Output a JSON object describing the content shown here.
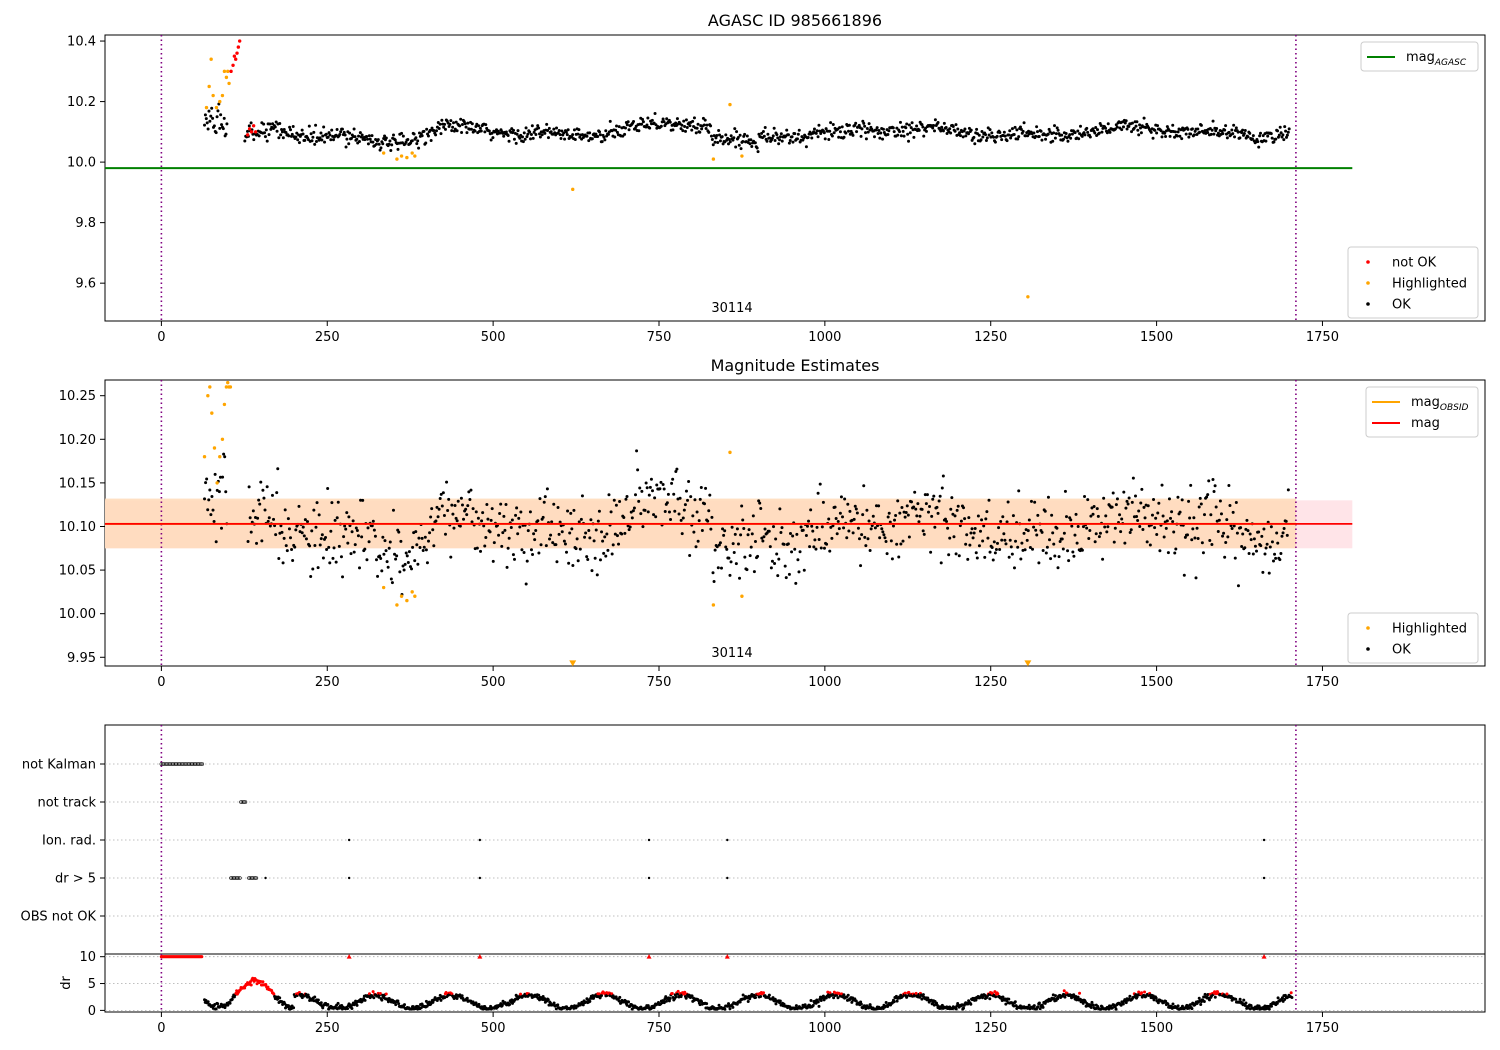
{
  "colors": {
    "ok": "#000000",
    "not_ok": "#ff0000",
    "highlighted": "#ffa500",
    "agasc_line": "#008000",
    "obsid_line": "#ffa500",
    "mag_line": "#ff0000",
    "obs_boundary": "#800080",
    "band_orange": "#ffdab9",
    "band_pink": "#ffe4e8"
  },
  "chart_data": [
    {
      "id": "top",
      "type": "scatter",
      "title": "AGASC ID 985661896",
      "annotation": "30114",
      "xlim": [
        -85,
        1995
      ],
      "ylim": [
        9.475,
        10.42
      ],
      "xticks": [
        0,
        250,
        500,
        750,
        1000,
        1250,
        1500,
        1750
      ],
      "xtick_labels": [
        "0",
        "250",
        "500",
        "750",
        "1000",
        "1250",
        "1500",
        "1750"
      ],
      "yticks": [
        9.6,
        9.8,
        10.0,
        10.2,
        10.4
      ],
      "ytick_labels": [
        "9.6",
        "9.8",
        "10.0",
        "10.2",
        "10.4"
      ],
      "vlines": [
        0,
        1710
      ],
      "hlines": [
        {
          "name": "mag_AGASC",
          "y": 9.98,
          "x": [
            -85,
            1795
          ],
          "color": "#008000"
        }
      ],
      "legend_upper": {
        "placement": "top-right",
        "entries": [
          {
            "label": "mag",
            "sub": "AGASC",
            "color": "#008000",
            "kind": "line"
          }
        ]
      },
      "legend_lower": {
        "placement": "bottom-right",
        "entries": [
          {
            "label": "not OK",
            "color": "#ff0000",
            "kind": "point"
          },
          {
            "label": "Highlighted",
            "color": "#ffa500",
            "kind": "point"
          },
          {
            "label": "OK",
            "color": "#000000",
            "kind": "point"
          }
        ]
      },
      "series": [
        {
          "name": "not OK",
          "color": "#ff0000",
          "x": [
            105,
            108,
            110,
            112,
            114,
            116,
            118,
            130,
            133,
            136,
            139,
            142
          ],
          "y": [
            10.3,
            10.32,
            10.35,
            10.34,
            10.36,
            10.38,
            10.4,
            10.09,
            10.11,
            10.1,
            10.12,
            10.1
          ]
        },
        {
          "name": "Highlighted",
          "color": "#ffa500",
          "x": [
            68,
            72,
            75,
            78,
            83,
            88,
            92,
            95,
            98,
            100,
            102,
            335,
            355,
            362,
            370,
            378,
            382,
            832,
            857,
            875,
            620,
            1306
          ],
          "y": [
            10.18,
            10.25,
            10.34,
            10.22,
            10.18,
            10.2,
            10.22,
            10.3,
            10.28,
            10.3,
            10.26,
            10.03,
            10.01,
            10.02,
            10.015,
            10.03,
            10.02,
            10.01,
            10.19,
            10.02,
            9.91,
            9.555
          ]
        },
        {
          "name": "OK",
          "color": "#000000",
          "generated": "per-frame"
        }
      ]
    },
    {
      "id": "mid",
      "type": "scatter",
      "title": "Magnitude Estimates",
      "annotation": "30114",
      "xlim": [
        -85,
        1995
      ],
      "ylim": [
        9.94,
        10.268
      ],
      "xticks": [
        0,
        250,
        500,
        750,
        1000,
        1250,
        1500,
        1750
      ],
      "xtick_labels": [
        "0",
        "250",
        "500",
        "750",
        "1000",
        "1250",
        "1500",
        "1750"
      ],
      "yticks": [
        9.95,
        10.0,
        10.05,
        10.1,
        10.15,
        10.2,
        10.25
      ],
      "ytick_labels": [
        "9.95",
        "10.00",
        "10.05",
        "10.10",
        "10.15",
        "10.20",
        "10.25"
      ],
      "vlines": [
        0,
        1710
      ],
      "mag": 10.103,
      "mag_band": [
        10.075,
        10.13
      ],
      "obsid_band": [
        10.075,
        10.132
      ],
      "legend_upper": {
        "placement": "top-right",
        "entries": [
          {
            "label": "mag",
            "sub": "OBSID",
            "color": "#ffa500",
            "kind": "line"
          },
          {
            "label": "mag",
            "sub": "",
            "color": "#ff0000",
            "kind": "line"
          }
        ]
      },
      "legend_lower": {
        "placement": "bottom-right",
        "entries": [
          {
            "label": "Highlighted",
            "color": "#ffa500",
            "kind": "point"
          },
          {
            "label": "OK",
            "color": "#000000",
            "kind": "point"
          }
        ]
      },
      "series": [
        {
          "name": "Highlighted",
          "color": "#ffa500",
          "x": [
            65,
            70,
            73,
            76,
            80,
            84,
            88,
            92,
            95,
            98,
            100,
            102,
            104,
            335,
            355,
            362,
            370,
            378,
            382,
            832,
            857,
            875
          ],
          "y": [
            10.18,
            10.25,
            10.26,
            10.23,
            10.19,
            10.15,
            10.18,
            10.2,
            10.24,
            10.26,
            10.265,
            10.26,
            10.26,
            10.03,
            10.01,
            10.02,
            10.015,
            10.025,
            10.02,
            10.01,
            10.185,
            10.02
          ]
        },
        {
          "name": "Highlighted",
          "color": "#ffa500",
          "marker": "triangle-down",
          "x": [
            620,
            1306
          ],
          "y": [
            9.943,
            9.943
          ]
        },
        {
          "name": "OK",
          "color": "#000000",
          "generated": "per-frame"
        }
      ]
    },
    {
      "id": "flags",
      "type": "scatter",
      "xlim": [
        -85,
        1995
      ],
      "categories": [
        "not Kalman",
        "not track",
        "Ion. rad.",
        "dr > 5",
        "OBS not OK"
      ],
      "flag_points": {
        "not Kalman": {
          "ranges": [
            [
              0,
              62
            ]
          ],
          "points": []
        },
        "not track": {
          "ranges": [
            [
              120,
              128
            ]
          ],
          "points": []
        },
        "Ion. rad.": {
          "ranges": [],
          "points": [
            283,
            480,
            735,
            853,
            1662
          ]
        },
        "dr > 5": {
          "ranges": [
            [
              105,
              120
            ],
            [
              132,
              145
            ]
          ],
          "points": [
            157,
            283,
            480,
            735,
            853,
            1662
          ]
        },
        "OBS not OK": {
          "ranges": [],
          "points": []
        }
      },
      "vlines": [
        0,
        1710
      ]
    },
    {
      "id": "dr",
      "type": "scatter",
      "ylabel": "dr",
      "xlim": [
        -85,
        1995
      ],
      "ylim": [
        -0.3,
        10.5
      ],
      "yticks": [
        0,
        5,
        10
      ],
      "ytick_labels": [
        "0",
        "5",
        "10"
      ],
      "xticks": [
        0,
        250,
        500,
        750,
        1000,
        1250,
        1500,
        1750
      ],
      "xtick_labels": [
        "0",
        "250",
        "500",
        "750",
        "1000",
        "1250",
        "1500",
        "1750"
      ],
      "vlines": [
        0,
        1710
      ],
      "spikes": [
        283,
        480,
        735,
        853,
        1662
      ],
      "saturated_range": [
        0,
        62
      ]
    }
  ]
}
